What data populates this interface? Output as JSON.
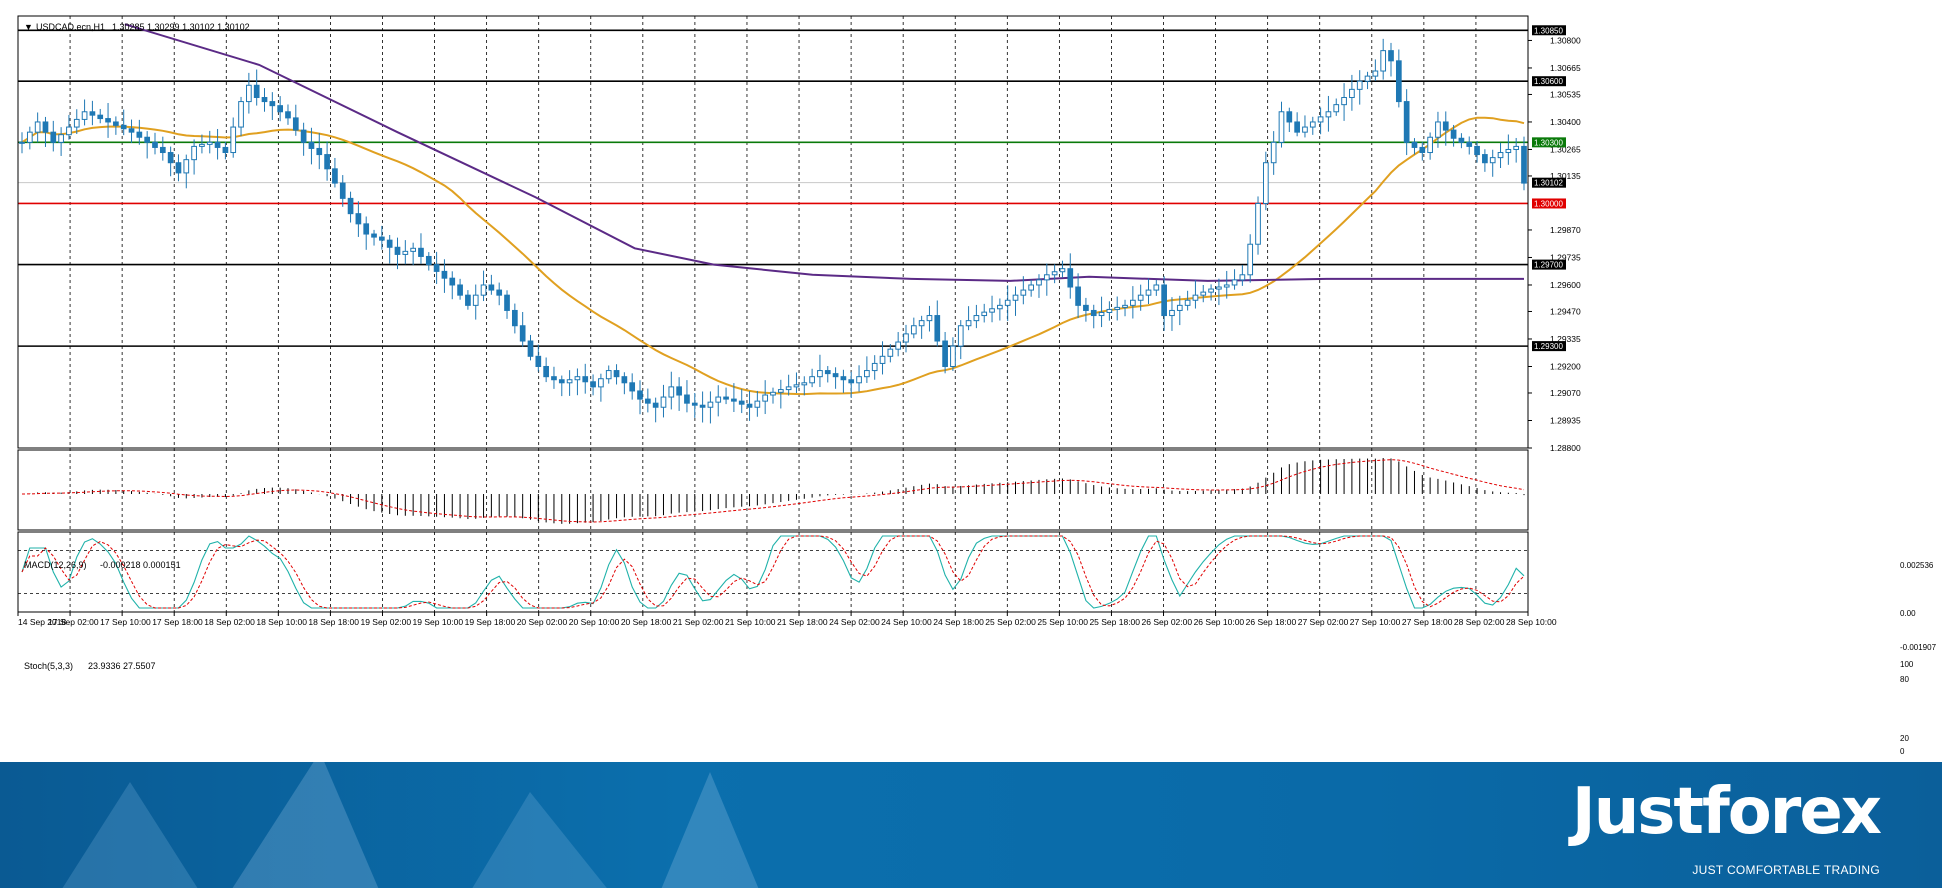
{
  "chart_data": {
    "type": "candlestick",
    "symbol_header": "USDCAD.ecn,H1",
    "ohlc_header": "1.30285 1.30299 1.30102 1.30102",
    "price_axis_ticks": [
      "1.30800",
      "1.30665",
      "1.30535",
      "1.30400",
      "1.30265",
      "1.30135",
      "1.29870",
      "1.29735",
      "1.29600",
      "1.29470",
      "1.29335",
      "1.29200",
      "1.29070",
      "1.28935",
      "1.28800"
    ],
    "price_range": [
      1.288,
      1.3092
    ],
    "last_price": "1.30102",
    "levels": [
      {
        "label": "1.30850",
        "value": 1.3085,
        "color": "#000000"
      },
      {
        "label": "1.30600",
        "value": 1.306,
        "color": "#000000"
      },
      {
        "label": "1.30300",
        "value": 1.303,
        "color": "#0a7a0a"
      },
      {
        "label": "1.30000",
        "value": 1.3,
        "color": "#e00000"
      },
      {
        "label": "1.29700",
        "value": 1.297,
        "color": "#000000"
      },
      {
        "label": "1.29300",
        "value": 1.293,
        "color": "#000000"
      }
    ],
    "time_labels": [
      "14 Sep 2018",
      "17 Sep 02:00",
      "17 Sep 10:00",
      "17 Sep 18:00",
      "18 Sep 02:00",
      "18 Sep 10:00",
      "18 Sep 18:00",
      "19 Sep 02:00",
      "19 Sep 10:00",
      "19 Sep 18:00",
      "20 Sep 02:00",
      "20 Sep 10:00",
      "20 Sep 18:00",
      "21 Sep 02:00",
      "21 Sep 10:00",
      "21 Sep 18:00",
      "24 Sep 02:00",
      "24 Sep 10:00",
      "24 Sep 18:00",
      "25 Sep 02:00",
      "25 Sep 10:00",
      "25 Sep 18:00",
      "26 Sep 02:00",
      "26 Sep 10:00",
      "26 Sep 18:00",
      "27 Sep 02:00",
      "27 Sep 10:00",
      "27 Sep 18:00",
      "28 Sep 02:00",
      "28 Sep 10:00"
    ],
    "close_path": [
      [
        0,
        1.303
      ],
      [
        2,
        1.304
      ],
      [
        4,
        1.303
      ],
      [
        8,
        1.3045
      ],
      [
        11,
        1.304
      ],
      [
        14,
        1.3035
      ],
      [
        18,
        1.3025
      ],
      [
        20,
        1.3015
      ],
      [
        22,
        1.3028
      ],
      [
        24,
        1.303
      ],
      [
        26,
        1.3025
      ],
      [
        28,
        1.305
      ],
      [
        29,
        1.3058
      ],
      [
        30,
        1.3052
      ],
      [
        32,
        1.3048
      ],
      [
        34,
        1.3042
      ],
      [
        36,
        1.303
      ],
      [
        38,
        1.3024
      ],
      [
        40,
        1.301
      ],
      [
        42,
        1.2995
      ],
      [
        44,
        1.2985
      ],
      [
        46,
        1.2982
      ],
      [
        48,
        1.2975
      ],
      [
        50,
        1.2978
      ],
      [
        52,
        1.297
      ],
      [
        55,
        1.296
      ],
      [
        57,
        1.295
      ],
      [
        59,
        1.296
      ],
      [
        61,
        1.2955
      ],
      [
        63,
        1.294
      ],
      [
        65,
        1.2925
      ],
      [
        67,
        1.2915
      ],
      [
        69,
        1.2912
      ],
      [
        71,
        1.2915
      ],
      [
        73,
        1.291
      ],
      [
        75,
        1.2918
      ],
      [
        77,
        1.2912
      ],
      [
        79,
        1.2904
      ],
      [
        81,
        1.29
      ],
      [
        83,
        1.291
      ],
      [
        85,
        1.2902
      ],
      [
        87,
        1.29
      ],
      [
        89,
        1.2905
      ],
      [
        91,
        1.2903
      ],
      [
        93,
        1.29
      ],
      [
        95,
        1.2906
      ],
      [
        98,
        1.291
      ],
      [
        100,
        1.2912
      ],
      [
        102,
        1.2918
      ],
      [
        104,
        1.2915
      ],
      [
        106,
        1.2912
      ],
      [
        108,
        1.2918
      ],
      [
        110,
        1.2925
      ],
      [
        112,
        1.2932
      ],
      [
        114,
        1.294
      ],
      [
        116,
        1.2945
      ],
      [
        118,
        1.292
      ],
      [
        120,
        1.294
      ],
      [
        122,
        1.2945
      ],
      [
        125,
        1.295
      ],
      [
        127,
        1.2955
      ],
      [
        129,
        1.296
      ],
      [
        131,
        1.2965
      ],
      [
        133,
        1.2968
      ],
      [
        135,
        1.295
      ],
      [
        137,
        1.2945
      ],
      [
        139,
        1.2948
      ],
      [
        141,
        1.295
      ],
      [
        143,
        1.2955
      ],
      [
        145,
        1.296
      ],
      [
        146,
        1.2945
      ],
      [
        148,
        1.295
      ],
      [
        150,
        1.2955
      ],
      [
        152,
        1.2958
      ],
      [
        154,
        1.296
      ],
      [
        156,
        1.2965
      ],
      [
        157,
        1.298
      ],
      [
        158,
        1.3
      ],
      [
        159,
        1.302
      ],
      [
        160,
        1.303
      ],
      [
        161,
        1.3045
      ],
      [
        163,
        1.3035
      ],
      [
        165,
        1.304
      ],
      [
        167,
        1.3045
      ],
      [
        169,
        1.3052
      ],
      [
        171,
        1.306
      ],
      [
        173,
        1.3065
      ],
      [
        174,
        1.3075
      ],
      [
        175,
        1.307
      ],
      [
        176,
        1.305
      ],
      [
        177,
        1.303
      ],
      [
        179,
        1.3025
      ],
      [
        181,
        1.304
      ],
      [
        183,
        1.3032
      ],
      [
        185,
        1.3028
      ],
      [
        187,
        1.302
      ],
      [
        189,
        1.3025
      ],
      [
        191,
        1.3028
      ],
      [
        192,
        1.301
      ]
    ],
    "indicators": [
      {
        "name": "MACD(12,26,9)",
        "values": "-0.000218 0.000151",
        "axis_ticks": [
          "0.002536",
          "0.00",
          "-0.001907"
        ]
      },
      {
        "name": "Stoch(5,3,3)",
        "values": "23.9336 27.5507",
        "axis_ticks": [
          "100",
          "80",
          "20",
          "0"
        ]
      }
    ],
    "grid": true,
    "colors": {
      "bull_candle": "#1f78b4",
      "bear_candle": "#1f78b4",
      "ma_fast": "#e0a020",
      "ma_slow": "#5b2a86",
      "macd_signal": "#e00000",
      "stoch_main": "#20b2aa",
      "stoch_signal": "#e00000"
    }
  },
  "brand": {
    "name": "Justforex",
    "tagline": "JUST COMFORTABLE TRADING"
  }
}
